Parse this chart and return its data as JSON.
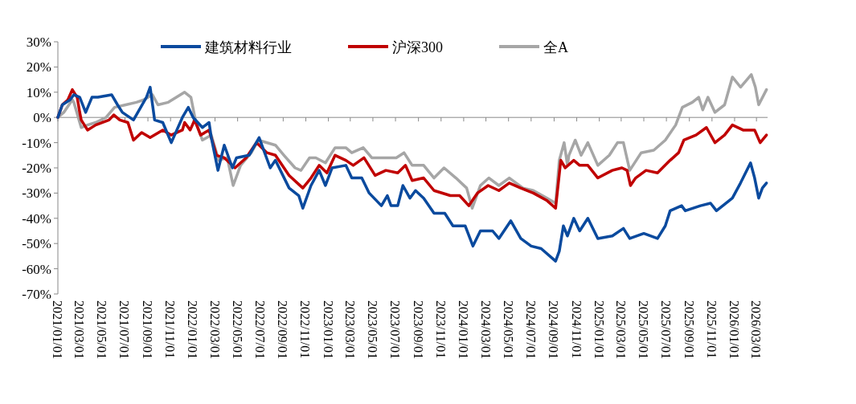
{
  "chart_data": {
    "type": "line",
    "legend": "top",
    "xlim": [
      "2021-01-01",
      "2026-03-31"
    ],
    "ylim": [
      -70,
      30
    ],
    "yticks": [
      {
        "value": 30,
        "label": "30%"
      },
      {
        "value": 20,
        "label": "20%"
      },
      {
        "value": 10,
        "label": "10%"
      },
      {
        "value": 0,
        "label": "0%"
      },
      {
        "value": -10,
        "label": "-10%"
      },
      {
        "value": -20,
        "label": "-20%"
      },
      {
        "value": -30,
        "label": "-30%"
      },
      {
        "value": -40,
        "label": "-40%"
      },
      {
        "value": -50,
        "label": "-50%"
      },
      {
        "value": -60,
        "label": "-60%"
      },
      {
        "value": -70,
        "label": "-70%"
      }
    ],
    "xticks": [
      {
        "value": "2021-01-01",
        "label": "2021/01/01"
      },
      {
        "value": "2021-03-01",
        "label": "2021/03/01"
      },
      {
        "value": "2021-05-01",
        "label": "2021/05/01"
      },
      {
        "value": "2021-07-01",
        "label": "2021/07/01"
      },
      {
        "value": "2021-09-01",
        "label": "2021/09/01"
      },
      {
        "value": "2021-11-01",
        "label": "2021/11/01"
      },
      {
        "value": "2022-01-01",
        "label": "2022/01/01"
      },
      {
        "value": "2022-03-01",
        "label": "2022/03/01"
      },
      {
        "value": "2022-05-01",
        "label": "2022/05/01"
      },
      {
        "value": "2022-07-01",
        "label": "2022/07/01"
      },
      {
        "value": "2022-09-01",
        "label": "2022/09/01"
      },
      {
        "value": "2022-11-01",
        "label": "2022/11/01"
      },
      {
        "value": "2023-01-01",
        "label": "2023/01/01"
      },
      {
        "value": "2023-03-01",
        "label": "2023/03/01"
      },
      {
        "value": "2023-05-01",
        "label": "2023/05/01"
      },
      {
        "value": "2023-07-01",
        "label": "2023/07/01"
      },
      {
        "value": "2023-09-01",
        "label": "2023/09/01"
      },
      {
        "value": "2023-11-01",
        "label": "2023/11/01"
      },
      {
        "value": "2024-01-01",
        "label": "2024/01/01"
      },
      {
        "value": "2024-03-01",
        "label": "2024/03/01"
      },
      {
        "value": "2024-05-01",
        "label": "2024/05/01"
      },
      {
        "value": "2024-07-01",
        "label": "2024/07/01"
      },
      {
        "value": "2024-09-01",
        "label": "2024/09/01"
      },
      {
        "value": "2024-11-01",
        "label": "2024/11/01"
      },
      {
        "value": "2025-01-01",
        "label": "2025/01/01"
      },
      {
        "value": "2025-03-01",
        "label": "2025/03/01"
      },
      {
        "value": "2025-05-01",
        "label": "2025/05/01"
      },
      {
        "value": "2025-07-01",
        "label": "2025/07/01"
      },
      {
        "value": "2025-09-01",
        "label": "2025/09/01"
      },
      {
        "value": "2025-11-01",
        "label": "2025/11/01"
      },
      {
        "value": "2026-01-01",
        "label": "2026/01/01"
      },
      {
        "value": "2026-03-01",
        "label": "2026/03/01"
      }
    ],
    "series": [
      {
        "name": "建筑材料行业",
        "color": "#0a4a9e",
        "x": [
          "2021-01-01",
          "2021-01-13",
          "2021-02-03",
          "2021-02-13",
          "2021-03-01",
          "2021-03-17",
          "2021-04-03",
          "2021-04-19",
          "2021-05-26",
          "2021-06-11",
          "2021-06-24",
          "2021-07-24",
          "2021-08-28",
          "2021-09-07",
          "2021-09-19",
          "2021-10-11",
          "2021-11-03",
          "2021-12-03",
          "2021-12-19",
          "2022-01-01",
          "2022-01-26",
          "2022-02-13",
          "2022-02-19",
          "2022-03-09",
          "2022-03-26",
          "2022-04-17",
          "2022-04-28",
          "2022-06-01",
          "2022-06-28",
          "2022-07-28",
          "2022-08-11",
          "2022-09-17",
          "2022-10-13",
          "2022-10-24",
          "2022-11-15",
          "2022-12-07",
          "2022-12-24",
          "2023-01-11",
          "2023-02-17",
          "2023-03-05",
          "2023-04-01",
          "2023-04-21",
          "2023-05-24",
          "2023-06-09",
          "2023-06-19",
          "2023-07-07",
          "2023-07-21",
          "2023-08-09",
          "2023-08-24",
          "2023-09-15",
          "2023-10-13",
          "2023-11-11",
          "2023-12-03",
          "2024-01-05",
          "2024-01-26",
          "2024-02-15",
          "2024-03-19",
          "2024-04-05",
          "2024-05-07",
          "2024-06-03",
          "2024-07-01",
          "2024-07-28",
          "2024-09-05",
          "2024-09-15",
          "2024-09-26",
          "2024-10-07",
          "2024-10-24",
          "2024-11-09",
          "2024-12-01",
          "2024-12-28",
          "2025-02-05",
          "2025-03-07",
          "2025-03-24",
          "2025-05-01",
          "2025-06-07",
          "2025-06-28",
          "2025-07-11",
          "2025-08-11",
          "2025-08-21",
          "2025-10-01",
          "2025-10-28",
          "2025-11-13",
          "2025-12-26",
          "2026-01-17",
          "2026-02-13",
          "2026-02-24",
          "2026-03-07",
          "2026-03-17",
          "2026-03-28"
        ],
        "values": [
          0,
          5,
          7,
          9,
          8,
          2,
          8,
          8,
          9,
          5,
          2,
          -1,
          8,
          12,
          -1,
          -2,
          -10,
          0,
          4,
          0,
          -4,
          -2,
          -8,
          -21,
          -11,
          -20,
          -16,
          -15,
          -8,
          -20,
          -17,
          -28,
          -31,
          -36,
          -27,
          -21,
          -27,
          -20,
          -19,
          -24,
          -24,
          -30,
          -35,
          -31,
          -35,
          -35,
          -27,
          -32,
          -29,
          -32,
          -38,
          -38,
          -43,
          -43,
          -51,
          -45,
          -45,
          -48,
          -41,
          -48,
          -51,
          -52,
          -57,
          -53,
          -43,
          -47,
          -40,
          -45,
          -40,
          -48,
          -47,
          -44,
          -48,
          -46,
          -48,
          -43,
          -37,
          -35,
          -37,
          -35,
          -34,
          -37,
          -32,
          -26,
          -18,
          -24,
          -32,
          -28,
          -26
        ]
      },
      {
        "name": "沪深300",
        "color": "#c00000",
        "x": [
          "2021-01-01",
          "2021-01-13",
          "2021-01-28",
          "2021-02-09",
          "2021-02-22",
          "2021-03-01",
          "2021-03-05",
          "2021-03-22",
          "2021-04-13",
          "2021-05-19",
          "2021-06-01",
          "2021-06-17",
          "2021-07-09",
          "2021-07-24",
          "2021-08-15",
          "2021-09-07",
          "2021-10-11",
          "2021-11-03",
          "2021-12-03",
          "2021-12-09",
          "2021-12-24",
          "2022-01-05",
          "2022-01-21",
          "2022-02-13",
          "2022-03-05",
          "2022-03-26",
          "2022-04-24",
          "2022-05-24",
          "2022-06-21",
          "2022-07-19",
          "2022-08-11",
          "2022-09-17",
          "2022-10-24",
          "2022-11-15",
          "2022-12-07",
          "2022-12-28",
          "2023-01-19",
          "2023-02-17",
          "2023-03-09",
          "2023-04-07",
          "2023-05-07",
          "2023-06-05",
          "2023-07-07",
          "2023-07-28",
          "2023-08-15",
          "2023-09-15",
          "2023-10-13",
          "2023-11-26",
          "2023-12-21",
          "2024-01-15",
          "2024-02-07",
          "2024-03-07",
          "2024-04-05",
          "2024-05-03",
          "2024-06-03",
          "2024-07-07",
          "2024-08-13",
          "2024-09-05",
          "2024-09-19",
          "2024-10-01",
          "2024-10-24",
          "2024-11-09",
          "2024-12-01",
          "2024-12-28",
          "2025-02-05",
          "2025-03-03",
          "2025-03-17",
          "2025-03-26",
          "2025-04-09",
          "2025-05-07",
          "2025-06-07",
          "2025-07-11",
          "2025-08-03",
          "2025-08-17",
          "2025-09-19",
          "2025-10-17",
          "2025-11-09",
          "2025-12-05",
          "2025-12-26",
          "2026-01-24",
          "2026-02-24",
          "2026-03-11",
          "2026-03-28"
        ],
        "values": [
          0,
          5,
          7,
          11,
          8,
          2,
          -1,
          -5,
          -3,
          -1,
          1,
          -1,
          -2,
          -9,
          -6,
          -8,
          -5,
          -7,
          -5,
          -2,
          -5,
          -1,
          -7,
          -5,
          -15,
          -16,
          -20,
          -16,
          -10,
          -14,
          -15,
          -23,
          -28,
          -24,
          -19,
          -22,
          -15,
          -17,
          -19,
          -16,
          -23,
          -21,
          -22,
          -19,
          -25,
          -24,
          -29,
          -31,
          -31,
          -35,
          -30,
          -27,
          -29,
          -26,
          -28,
          -30,
          -33,
          -36,
          -17,
          -20,
          -17,
          -19,
          -19,
          -24,
          -21,
          -20,
          -21,
          -27,
          -24,
          -21,
          -22,
          -17,
          -14,
          -9,
          -7,
          -4,
          -10,
          -7,
          -3,
          -5,
          -5,
          -10,
          -7
        ]
      },
      {
        "name": "全A",
        "color": "#a6a6a6",
        "x": [
          "2021-01-01",
          "2021-01-17",
          "2021-02-09",
          "2021-02-13",
          "2021-03-05",
          "2021-03-22",
          "2021-04-13",
          "2021-05-11",
          "2021-06-03",
          "2021-07-03",
          "2021-08-01",
          "2021-08-21",
          "2021-09-13",
          "2021-09-28",
          "2021-10-26",
          "2021-11-17",
          "2021-12-09",
          "2021-12-26",
          "2022-01-07",
          "2022-01-26",
          "2022-02-19",
          "2022-03-11",
          "2022-04-03",
          "2022-04-19",
          "2022-05-09",
          "2022-06-07",
          "2022-06-26",
          "2022-08-11",
          "2022-09-03",
          "2022-10-03",
          "2022-10-19",
          "2022-11-11",
          "2022-11-28",
          "2022-12-24",
          "2023-01-19",
          "2023-02-17",
          "2023-03-05",
          "2023-04-05",
          "2023-04-28",
          "2023-06-05",
          "2023-07-03",
          "2023-07-24",
          "2023-08-15",
          "2023-09-15",
          "2023-10-13",
          "2023-11-09",
          "2023-12-11",
          "2024-01-09",
          "2024-01-24",
          "2024-02-15",
          "2024-03-09",
          "2024-04-05",
          "2024-05-03",
          "2024-06-09",
          "2024-07-07",
          "2024-08-13",
          "2024-09-05",
          "2024-09-15",
          "2024-09-28",
          "2024-10-07",
          "2024-10-11",
          "2024-10-28",
          "2024-11-13",
          "2024-12-01",
          "2024-12-28",
          "2025-01-28",
          "2025-02-19",
          "2025-03-07",
          "2025-03-24",
          "2025-04-24",
          "2025-05-28",
          "2025-06-28",
          "2025-07-26",
          "2025-08-13",
          "2025-09-09",
          "2025-09-26",
          "2025-10-07",
          "2025-10-21",
          "2025-11-09",
          "2025-12-05",
          "2025-12-26",
          "2026-01-17",
          "2026-02-15",
          "2026-02-26",
          "2026-03-07",
          "2026-03-28"
        ],
        "values": [
          0,
          2,
          7,
          6,
          -4,
          -3,
          -2,
          0,
          4,
          5,
          6,
          7,
          9,
          5,
          6,
          8,
          10,
          8,
          -1,
          -9,
          -7,
          -17,
          -16,
          -27,
          -19,
          -14,
          -9,
          -11,
          -15,
          -20,
          -21,
          -16,
          -16,
          -18,
          -12,
          -12,
          -14,
          -12,
          -16,
          -16,
          -16,
          -14,
          -19,
          -19,
          -24,
          -20,
          -24,
          -28,
          -36,
          -27,
          -24,
          -27,
          -24,
          -28,
          -29,
          -32,
          -34,
          -17,
          -10,
          -19,
          -15,
          -9,
          -15,
          -10,
          -19,
          -15,
          -10,
          -10,
          -21,
          -14,
          -13,
          -9,
          -3,
          4,
          6,
          8,
          3,
          8,
          2,
          5,
          16,
          12,
          17,
          12,
          5,
          11
        ]
      }
    ]
  }
}
